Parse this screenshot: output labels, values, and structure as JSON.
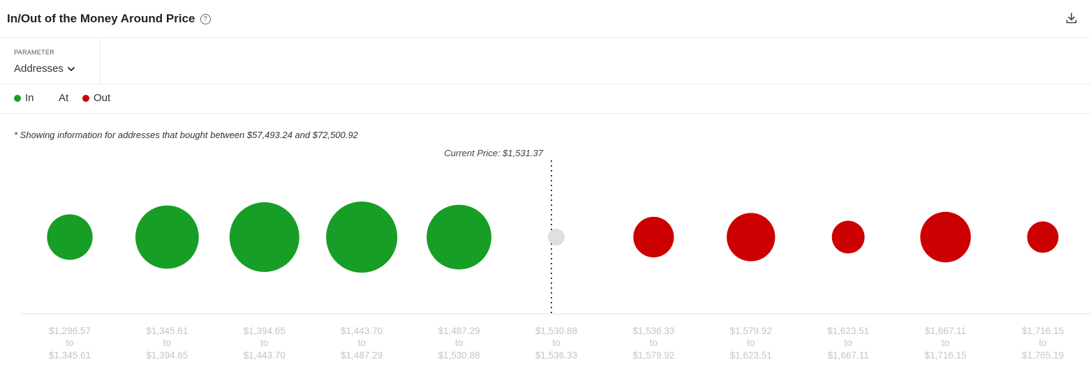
{
  "header": {
    "title": "In/Out of the Money Around Price",
    "help_icon": "question-circle-icon",
    "download_icon": "download-icon"
  },
  "parameter": {
    "label": "PARAMETER",
    "value": "Addresses",
    "dropdown_icon": "chevron-down-icon"
  },
  "legend": [
    {
      "label": "In",
      "color": "#169e26"
    },
    {
      "label": "At",
      "color": "#e0e0e0"
    },
    {
      "label": "Out",
      "color": "#cc0000"
    }
  ],
  "note": "* Showing information for addresses that bought between $57,493.24 and $72,500.92",
  "chart_data": {
    "type": "bubble",
    "current_price_label": "Current Price: $1,531.37",
    "current_price_index": 5,
    "colors": {
      "In": "#169e26",
      "At": "#e0e0e0",
      "Out": "#cc0000"
    },
    "categories": [
      {
        "from": "$1,296.57",
        "to_word": "to",
        "to": "$1,345.61",
        "status": "In",
        "relative_size": 0.64
      },
      {
        "from": "$1,345.61",
        "to_word": "to",
        "to": "$1,394.65",
        "status": "In",
        "relative_size": 0.89
      },
      {
        "from": "$1,394.65",
        "to_word": "to",
        "to": "$1,443.70",
        "status": "In",
        "relative_size": 0.98
      },
      {
        "from": "$1,443.70",
        "to_word": "to",
        "to": "$1,487.29",
        "status": "In",
        "relative_size": 1.0
      },
      {
        "from": "$1,487.29",
        "to_word": "to",
        "to": "$1,530.88",
        "status": "In",
        "relative_size": 0.91
      },
      {
        "from": "$1,530.88",
        "to_word": "to",
        "to": "$1,536.33",
        "status": "At",
        "relative_size": 0.22
      },
      {
        "from": "$1,536.33",
        "to_word": "to",
        "to": "$1,579.92",
        "status": "Out",
        "relative_size": 0.57
      },
      {
        "from": "$1,579.92",
        "to_word": "to",
        "to": "$1,623.51",
        "status": "Out",
        "relative_size": 0.68
      },
      {
        "from": "$1,623.51",
        "to_word": "to",
        "to": "$1,667.11",
        "status": "Out",
        "relative_size": 0.46
      },
      {
        "from": "$1,667.11",
        "to_word": "to",
        "to": "$1,716.15",
        "status": "Out",
        "relative_size": 0.71
      },
      {
        "from": "$1,716.15",
        "to_word": "to",
        "to": "$1,765.19",
        "status": "Out",
        "relative_size": 0.44
      }
    ]
  }
}
